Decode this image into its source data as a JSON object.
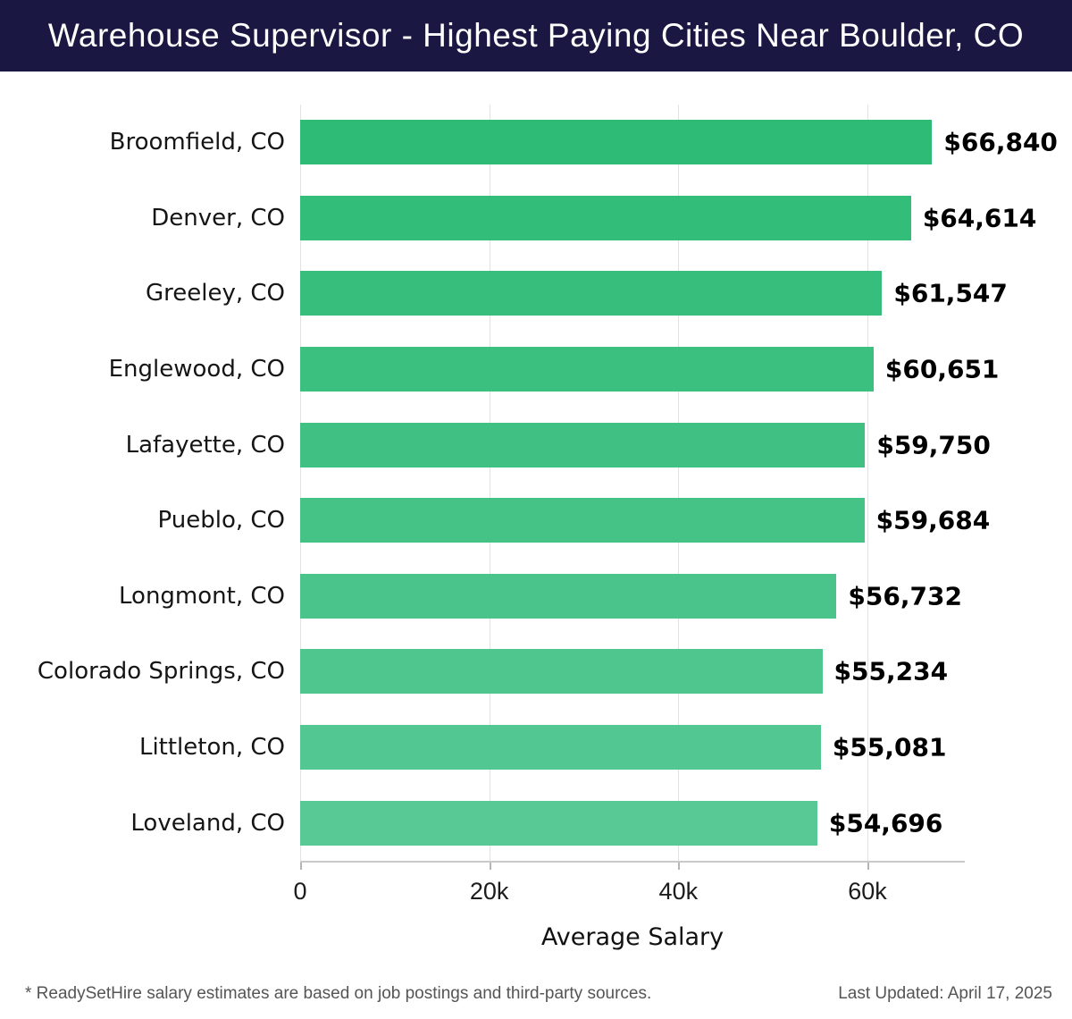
{
  "header": {
    "title": "Warehouse Supervisor - Highest Paying Cities Near Boulder, CO",
    "background_color": "#1a1842",
    "text_color": "#ffffff"
  },
  "chart_data": {
    "type": "bar",
    "orientation": "horizontal",
    "title": "Warehouse Supervisor - Highest Paying Cities Near Boulder, CO",
    "categories": [
      "Broomfield, CO",
      "Denver, CO",
      "Greeley, CO",
      "Englewood, CO",
      "Lafayette, CO",
      "Pueblo, CO",
      "Longmont, CO",
      "Colorado Springs, CO",
      "Littleton, CO",
      "Loveland, CO"
    ],
    "values": [
      66840,
      64614,
      61547,
      60651,
      59750,
      59684,
      56732,
      55234,
      55081,
      54696
    ],
    "value_labels": [
      "$66,840",
      "$64,614",
      "$61,547",
      "$60,651",
      "$59,750",
      "$59,684",
      "$56,732",
      "$55,234",
      "$55,081",
      "$54,696"
    ],
    "bar_colors": [
      "#2dbb75",
      "#32bd79",
      "#37be7c",
      "#3bc080",
      "#40c183",
      "#45c387",
      "#4ac48a",
      "#4ec68e",
      "#53c791",
      "#58c995"
    ],
    "xlabel": "Average Salary",
    "ylabel": "",
    "xlim": [
      0,
      70300
    ],
    "x_ticks": [
      {
        "value": 0,
        "label": "0"
      },
      {
        "value": 20000,
        "label": "20k"
      },
      {
        "value": 40000,
        "label": "40k"
      },
      {
        "value": 60000,
        "label": "60k"
      }
    ],
    "grid": true,
    "legend": false,
    "gridline_color": "#e2e2e2",
    "axis_line_color": "#c9c9c9",
    "tick_color": "#b5b5b5"
  },
  "footer": {
    "disclaimer": "* ReadySetHire salary estimates are based on job postings and third-party sources.",
    "last_updated": "Last Updated: April 17, 2025"
  }
}
